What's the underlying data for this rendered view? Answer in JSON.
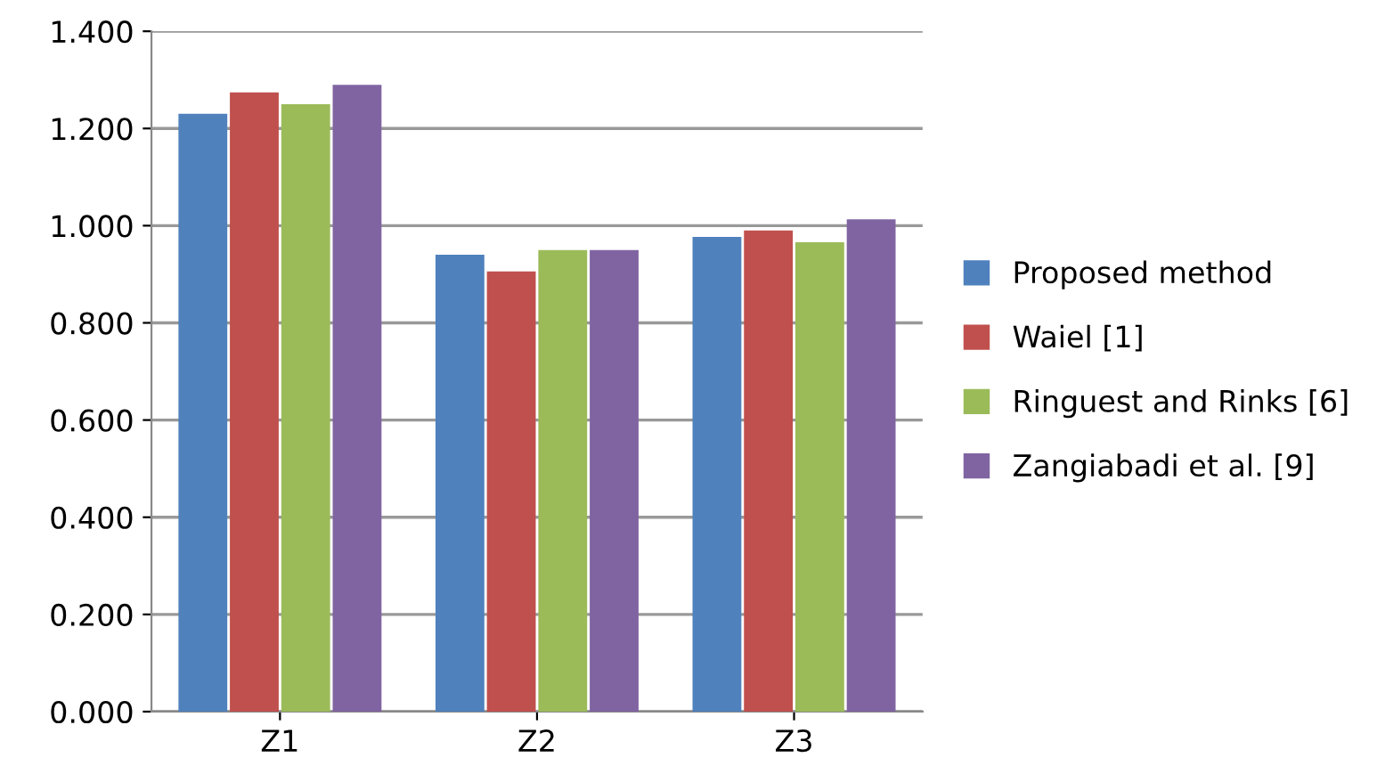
{
  "chart_data": {
    "type": "bar",
    "categories": [
      "Z1",
      "Z2",
      "Z3"
    ],
    "series": [
      {
        "name": "Proposed method",
        "color": "#4f81bd",
        "values": [
          1.23,
          0.94,
          0.977
        ]
      },
      {
        "name": "Waiel [1]",
        "color": "#c0504d",
        "values": [
          1.274,
          0.906,
          0.99
        ]
      },
      {
        "name": "Ringuest and Rinks [6]",
        "color": "#9bbb59",
        "values": [
          1.25,
          0.95,
          0.966
        ]
      },
      {
        "name": "Zangiabadi et al. [9]",
        "color": "#8064a2",
        "values": [
          1.29,
          0.95,
          1.013
        ]
      }
    ],
    "ylim": [
      0,
      1.4
    ],
    "yticks": [
      {
        "value": 0,
        "label": "0.000"
      },
      {
        "value": 0.2,
        "label": "0.200"
      },
      {
        "value": 0.4,
        "label": "0.400"
      },
      {
        "value": 0.6,
        "label": "0.600"
      },
      {
        "value": 0.8,
        "label": "0.800"
      },
      {
        "value": 1.0,
        "label": "1.000"
      },
      {
        "value": 1.2,
        "label": "1.200"
      },
      {
        "value": 1.4,
        "label": "1.400"
      }
    ],
    "grid": "y",
    "legend": "right"
  }
}
